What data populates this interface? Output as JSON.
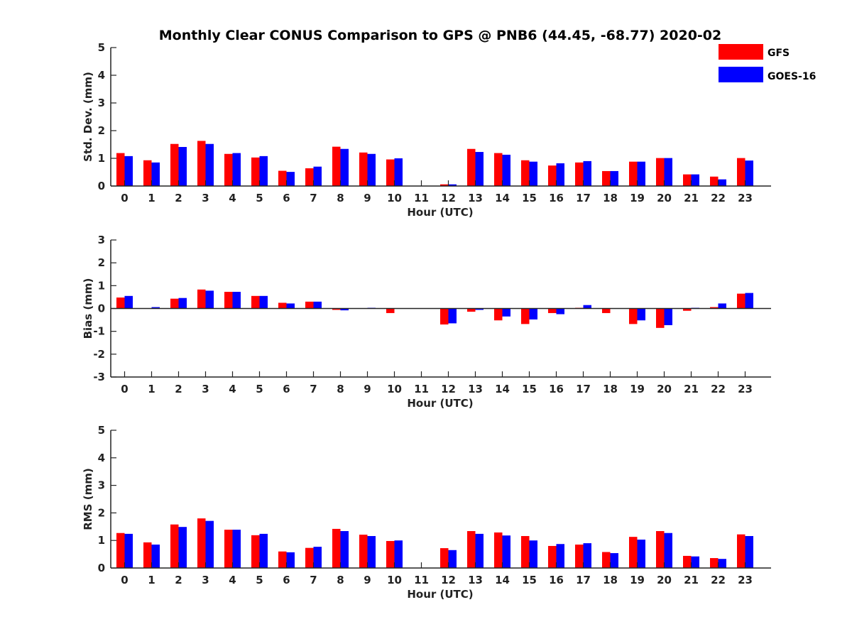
{
  "chart_data": {
    "type": "bar",
    "title": "Monthly Clear CONUS Comparison to GPS @ PNB6 (44.45, -68.77) 2020-02",
    "legend": [
      {
        "name": "GFS",
        "color": "#ff0000"
      },
      {
        "name": "GOES-16",
        "color": "#0000ff"
      }
    ],
    "legend_position": "top-right",
    "categories": [
      "0",
      "1",
      "2",
      "3",
      "4",
      "5",
      "6",
      "7",
      "8",
      "9",
      "10",
      "11",
      "12",
      "13",
      "14",
      "15",
      "16",
      "17",
      "18",
      "19",
      "20",
      "21",
      "22",
      "23"
    ],
    "subplots": [
      {
        "ylabel": "Std. Dev. (mm)",
        "xlabel": "Hour (UTC)",
        "ylim": [
          0,
          5
        ],
        "yticks": [
          "0",
          "1",
          "2",
          "3",
          "4",
          "5"
        ],
        "series": [
          {
            "name": "GFS",
            "values": [
              1.19,
              0.93,
              1.52,
              1.63,
              1.16,
              1.03,
              0.55,
              0.64,
              1.42,
              1.21,
              0.96,
              null,
              0.06,
              1.34,
              1.19,
              0.93,
              0.74,
              0.85,
              0.54,
              0.88,
              1.01,
              0.42,
              0.34,
              1.01
            ]
          },
          {
            "name": "GOES-16",
            "values": [
              1.08,
              0.85,
              1.41,
              1.52,
              1.19,
              1.08,
              0.51,
              0.7,
              1.34,
              1.16,
              1.0,
              null,
              0.06,
              1.23,
              1.13,
              0.88,
              0.82,
              0.9,
              0.54,
              0.88,
              1.01,
              0.42,
              0.24,
              0.92
            ]
          }
        ]
      },
      {
        "ylabel": "Bias (mm)",
        "xlabel": "Hour (UTC)",
        "ylim": [
          -3,
          3
        ],
        "yticks": [
          "-3",
          "-2",
          "-1",
          "0",
          "1",
          "2",
          "3"
        ],
        "series": [
          {
            "name": "GFS",
            "values": [
              0.48,
              0.0,
              0.43,
              0.83,
              0.73,
              0.55,
              0.25,
              0.3,
              -0.06,
              0.0,
              -0.2,
              null,
              -0.7,
              -0.14,
              -0.52,
              -0.68,
              -0.2,
              0.03,
              -0.2,
              -0.68,
              -0.85,
              -0.1,
              0.06,
              0.65
            ]
          },
          {
            "name": "GOES-16",
            "values": [
              0.55,
              0.06,
              0.46,
              0.78,
              0.73,
              0.55,
              0.22,
              0.3,
              -0.08,
              0.03,
              0.0,
              null,
              -0.65,
              -0.06,
              -0.35,
              -0.48,
              -0.25,
              0.15,
              0.0,
              -0.52,
              -0.73,
              0.03,
              0.22,
              0.68
            ]
          }
        ]
      },
      {
        "ylabel": "RMS (mm)",
        "xlabel": "Hour (UTC)",
        "ylim": [
          0,
          5
        ],
        "yticks": [
          "0",
          "1",
          "2",
          "3",
          "4",
          "5"
        ],
        "series": [
          {
            "name": "GFS",
            "values": [
              1.27,
              0.93,
              1.58,
              1.8,
              1.39,
              1.19,
              0.6,
              0.73,
              1.42,
              1.21,
              0.98,
              null,
              0.72,
              1.34,
              1.29,
              1.16,
              0.8,
              0.85,
              0.58,
              1.13,
              1.34,
              0.44,
              0.36,
              1.22
            ]
          },
          {
            "name": "GOES-16",
            "values": [
              1.24,
              0.85,
              1.49,
              1.71,
              1.39,
              1.24,
              0.57,
              0.77,
              1.34,
              1.16,
              1.0,
              null,
              0.65,
              1.24,
              1.18,
              1.0,
              0.87,
              0.9,
              0.54,
              1.03,
              1.27,
              0.42,
              0.33,
              1.16
            ]
          }
        ]
      }
    ]
  }
}
